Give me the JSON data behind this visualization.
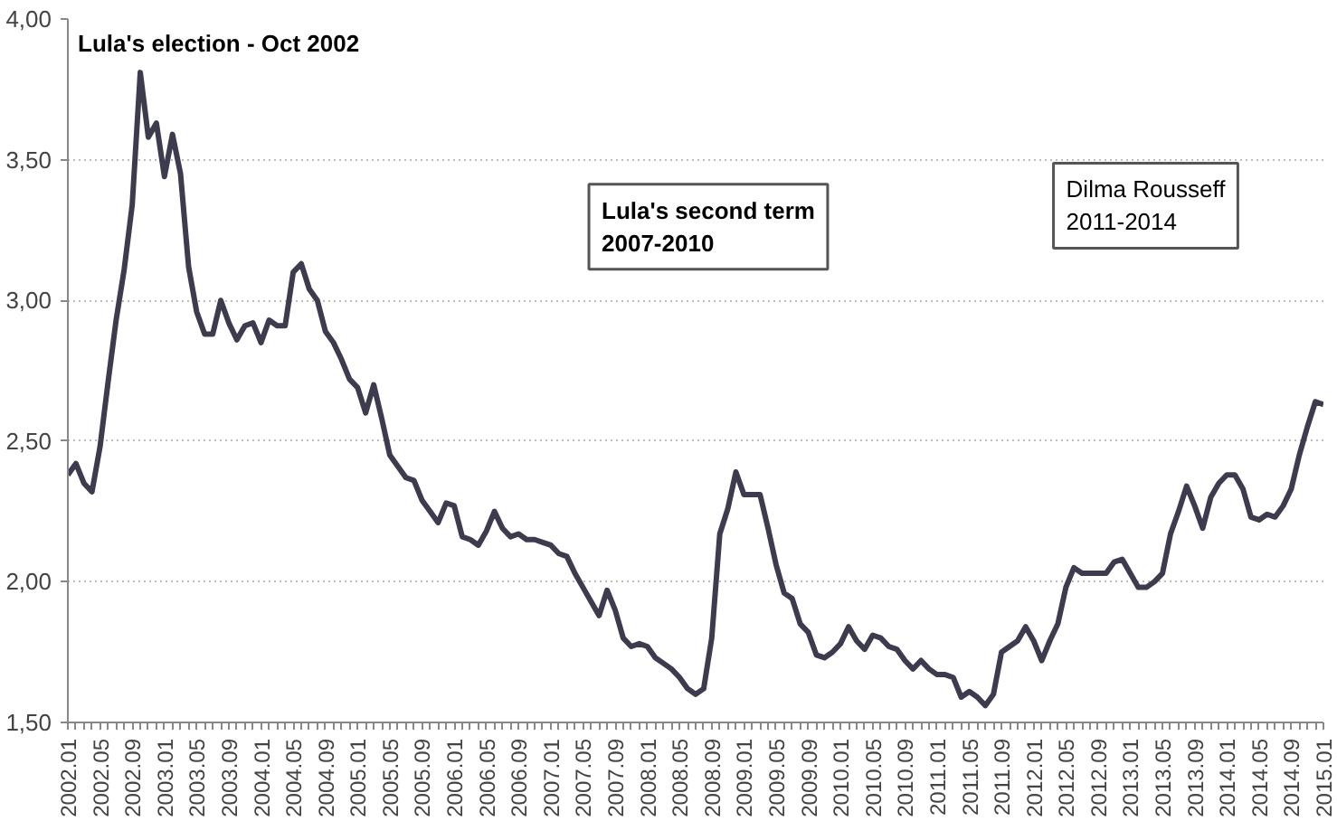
{
  "chart_data": {
    "type": "line",
    "categories": [
      "2002.01",
      null,
      null,
      null,
      "2002.05",
      null,
      null,
      null,
      "2002.09",
      null,
      null,
      null,
      "2003.01",
      null,
      null,
      null,
      "2003.05",
      null,
      null,
      null,
      "2003.09",
      null,
      null,
      null,
      "2004.01",
      null,
      null,
      null,
      "2004.05",
      null,
      null,
      null,
      "2004.09",
      null,
      null,
      null,
      "2005.01",
      null,
      null,
      null,
      "2005.05",
      null,
      null,
      null,
      "2005.09",
      null,
      null,
      null,
      "2006.01",
      null,
      null,
      null,
      "2006.05",
      null,
      null,
      null,
      "2006.09",
      null,
      null,
      null,
      "2007.01",
      null,
      null,
      null,
      "2007.05",
      null,
      null,
      null,
      "2007.09",
      null,
      null,
      null,
      "2008.01",
      null,
      null,
      null,
      "2008.05",
      null,
      null,
      null,
      "2008.09",
      null,
      null,
      null,
      "2009.01",
      null,
      null,
      null,
      "2009.05",
      null,
      null,
      null,
      "2009.09",
      null,
      null,
      null,
      "2010.01",
      null,
      null,
      null,
      "2010.05",
      null,
      null,
      null,
      "2010.09",
      null,
      null,
      null,
      "2011.01",
      null,
      null,
      null,
      "2011.05",
      null,
      null,
      null,
      "2011.09",
      null,
      null,
      null,
      "2012.01",
      null,
      null,
      null,
      "2012.05",
      null,
      null,
      null,
      "2012.09",
      null,
      null,
      null,
      "2013.01",
      null,
      null,
      null,
      "2013.05",
      null,
      null,
      null,
      "2013.09",
      null,
      null,
      null,
      "2014.01",
      null,
      null,
      null,
      "2014.05",
      null,
      null,
      null,
      "2014.09",
      null,
      null,
      null,
      "2015.01"
    ],
    "series": [
      {
        "color": "#3d3c4e",
        "values": [
          2.38,
          2.42,
          2.35,
          2.32,
          2.48,
          2.71,
          2.93,
          3.11,
          3.34,
          3.81,
          3.58,
          3.63,
          3.44,
          3.59,
          3.45,
          3.12,
          2.96,
          2.88,
          2.88,
          3.0,
          2.92,
          2.86,
          2.91,
          2.92,
          2.85,
          2.93,
          2.91,
          2.91,
          3.1,
          3.13,
          3.04,
          3.0,
          2.89,
          2.85,
          2.79,
          2.72,
          2.69,
          2.6,
          2.7,
          2.58,
          2.45,
          2.41,
          2.37,
          2.36,
          2.29,
          2.25,
          2.21,
          2.28,
          2.27,
          2.16,
          2.15,
          2.13,
          2.18,
          2.25,
          2.19,
          2.16,
          2.17,
          2.15,
          2.15,
          2.14,
          2.13,
          2.1,
          2.09,
          2.03,
          1.98,
          1.93,
          1.88,
          1.97,
          1.9,
          1.8,
          1.77,
          1.78,
          1.77,
          1.73,
          1.71,
          1.69,
          1.66,
          1.62,
          1.6,
          1.62,
          1.8,
          2.17,
          2.26,
          2.39,
          2.31,
          2.31,
          2.31,
          2.19,
          2.06,
          1.96,
          1.94,
          1.85,
          1.82,
          1.74,
          1.73,
          1.75,
          1.78,
          1.84,
          1.79,
          1.76,
          1.81,
          1.8,
          1.77,
          1.76,
          1.72,
          1.69,
          1.72,
          1.69,
          1.67,
          1.67,
          1.66,
          1.59,
          1.61,
          1.59,
          1.56,
          1.6,
          1.75,
          1.77,
          1.79,
          1.84,
          1.79,
          1.72,
          1.79,
          1.85,
          1.98,
          2.05,
          2.03,
          2.03,
          2.03,
          2.03,
          2.07,
          2.08,
          2.03,
          1.98,
          1.98,
          2.0,
          2.03,
          2.17,
          2.25,
          2.34,
          2.27,
          2.19,
          2.3,
          2.35,
          2.38,
          2.38,
          2.33,
          2.23,
          2.22,
          2.24,
          2.23,
          2.27,
          2.33,
          2.45,
          2.55,
          2.64,
          2.63
        ]
      }
    ],
    "ylim": [
      1.5,
      4.0
    ],
    "yticks": [
      {
        "value": 1.5,
        "label": "1,50"
      },
      {
        "value": 2.0,
        "label": "2,00"
      },
      {
        "value": 2.5,
        "label": "2,50"
      },
      {
        "value": 3.0,
        "label": "3,00"
      },
      {
        "value": 3.5,
        "label": "3,50"
      },
      {
        "value": 4.0,
        "label": "4,00"
      }
    ],
    "grid": "y",
    "line_style": "solid",
    "annotations": [
      "Lula's election - Oct 2002",
      "Lula's second term\n2007-2010",
      "Dilma Rousseff\n2011-2014"
    ]
  }
}
